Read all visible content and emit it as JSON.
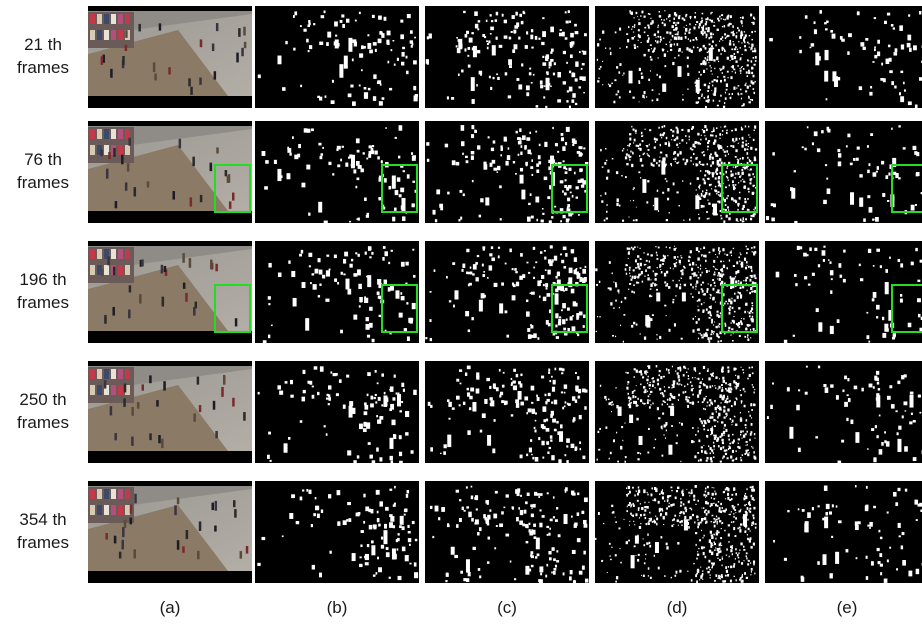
{
  "rows": [
    {
      "number": "21 th",
      "unit": "frames"
    },
    {
      "number": "76 th",
      "unit": "frames"
    },
    {
      "number": "196 th",
      "unit": "frames"
    },
    {
      "number": "250 th",
      "unit": "frames"
    },
    {
      "number": "354 th",
      "unit": "frames"
    }
  ],
  "columns": [
    "(a)",
    "(b)",
    "(c)",
    "(d)",
    "(e)"
  ],
  "colors": {
    "highlight_box": "#22dd22",
    "mask_foreground": "#ffffff",
    "mask_background": "#000000",
    "divider": "#ffffff"
  }
}
